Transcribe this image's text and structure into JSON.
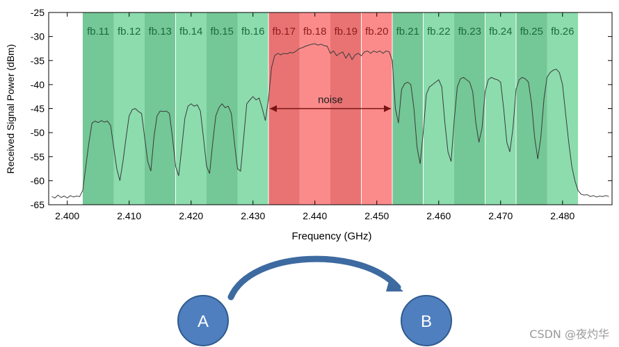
{
  "chart_data": {
    "type": "area",
    "xlabel": "Frequency (GHz)",
    "ylabel": "Received Signal Power (dBm)",
    "xlim": [
      2.397,
      2.488
    ],
    "ylim": [
      -65,
      -25
    ],
    "x_ticks": [
      2.4,
      2.41,
      2.42,
      2.43,
      2.44,
      2.45,
      2.46,
      2.47,
      2.48
    ],
    "x_tick_labels": [
      "2.400",
      "2.410",
      "2.420",
      "2.430",
      "2.440",
      "2.450",
      "2.460",
      "2.470",
      "2.480"
    ],
    "y_ticks": [
      -65,
      -60,
      -55,
      -50,
      -45,
      -40,
      -35,
      -30,
      -25
    ],
    "y_tick_labels": [
      "-65",
      "-60",
      "-55",
      "-50",
      "-45",
      "-40",
      "-35",
      "-30",
      "-25"
    ],
    "grid": false,
    "bands": [
      {
        "label": "fb.11",
        "x0": 2.4025,
        "x1": 2.4075,
        "type": "green"
      },
      {
        "label": "fb.12",
        "x0": 2.4075,
        "x1": 2.4125,
        "type": "green"
      },
      {
        "label": "fb.13",
        "x0": 2.4125,
        "x1": 2.4175,
        "type": "green"
      },
      {
        "label": "fb.14",
        "x0": 2.4175,
        "x1": 2.4225,
        "type": "green"
      },
      {
        "label": "fb.15",
        "x0": 2.4225,
        "x1": 2.4275,
        "type": "green"
      },
      {
        "label": "fb.16",
        "x0": 2.4275,
        "x1": 2.4325,
        "type": "green"
      },
      {
        "label": "fb.17",
        "x0": 2.4325,
        "x1": 2.4375,
        "type": "red"
      },
      {
        "label": "fb.18",
        "x0": 2.4375,
        "x1": 2.4425,
        "type": "red"
      },
      {
        "label": "fb.19",
        "x0": 2.4425,
        "x1": 2.4475,
        "type": "red"
      },
      {
        "label": "fb.20",
        "x0": 2.4475,
        "x1": 2.4525,
        "type": "red"
      },
      {
        "label": "fb.21",
        "x0": 2.4525,
        "x1": 2.4575,
        "type": "green"
      },
      {
        "label": "fb.22",
        "x0": 2.4575,
        "x1": 2.4625,
        "type": "green"
      },
      {
        "label": "fb.23",
        "x0": 2.4625,
        "x1": 2.4675,
        "type": "green"
      },
      {
        "label": "fb.24",
        "x0": 2.4675,
        "x1": 2.4725,
        "type": "green"
      },
      {
        "label": "fb.25",
        "x0": 2.4725,
        "x1": 2.4775,
        "type": "green"
      },
      {
        "label": "fb.26",
        "x0": 2.4775,
        "x1": 2.4825,
        "type": "green"
      }
    ],
    "annotation": {
      "text": "noise",
      "x0": 2.4325,
      "x1": 2.4525,
      "y": -45
    },
    "series": [
      {
        "values": [
          [
            2.3975,
            -63.3
          ],
          [
            2.398,
            -63.6
          ],
          [
            2.3985,
            -63.0
          ],
          [
            2.399,
            -63.5
          ],
          [
            2.3995,
            -63.2
          ],
          [
            2.4,
            -63.6
          ],
          [
            2.4005,
            -63.1
          ],
          [
            2.401,
            -63.4
          ],
          [
            2.4015,
            -63.2
          ],
          [
            2.402,
            -63.3
          ],
          [
            2.4025,
            -62.0
          ],
          [
            2.403,
            -57.0
          ],
          [
            2.4035,
            -52.0
          ],
          [
            2.404,
            -48.0
          ],
          [
            2.4045,
            -47.6
          ],
          [
            2.405,
            -47.9
          ],
          [
            2.4055,
            -47.5
          ],
          [
            2.406,
            -47.8
          ],
          [
            2.4065,
            -47.6
          ],
          [
            2.407,
            -48.5
          ],
          [
            2.4075,
            -53.0
          ],
          [
            2.408,
            -57.5
          ],
          [
            2.4085,
            -60.0
          ],
          [
            2.409,
            -56.0
          ],
          [
            2.4095,
            -51.0
          ],
          [
            2.41,
            -46.5
          ],
          [
            2.4105,
            -45.2
          ],
          [
            2.411,
            -45.0
          ],
          [
            2.4115,
            -45.6
          ],
          [
            2.412,
            -46.0
          ],
          [
            2.4125,
            -51.0
          ],
          [
            2.413,
            -56.0
          ],
          [
            2.4135,
            -58.0
          ],
          [
            2.414,
            -51.0
          ],
          [
            2.4145,
            -46.5
          ],
          [
            2.415,
            -45.5
          ],
          [
            2.4155,
            -45.6
          ],
          [
            2.416,
            -45.5
          ],
          [
            2.4165,
            -46.0
          ],
          [
            2.417,
            -51.0
          ],
          [
            2.4175,
            -57.0
          ],
          [
            2.418,
            -59.0
          ],
          [
            2.4185,
            -53.0
          ],
          [
            2.419,
            -47.0
          ],
          [
            2.4195,
            -44.5
          ],
          [
            2.42,
            -44.0
          ],
          [
            2.4205,
            -44.5
          ],
          [
            2.421,
            -44.2
          ],
          [
            2.4215,
            -45.5
          ],
          [
            2.422,
            -51.0
          ],
          [
            2.4225,
            -57.0
          ],
          [
            2.423,
            -58.5
          ],
          [
            2.4235,
            -52.0
          ],
          [
            2.424,
            -46.5
          ],
          [
            2.4245,
            -44.8
          ],
          [
            2.425,
            -44.0
          ],
          [
            2.4255,
            -44.8
          ],
          [
            2.426,
            -44.5
          ],
          [
            2.4265,
            -46.0
          ],
          [
            2.427,
            -52.0
          ],
          [
            2.4275,
            -57.5
          ],
          [
            2.428,
            -58.0
          ],
          [
            2.4285,
            -51.0
          ],
          [
            2.429,
            -44.0
          ],
          [
            2.4295,
            -43.2
          ],
          [
            2.43,
            -42.5
          ],
          [
            2.4305,
            -43.2
          ],
          [
            2.431,
            -42.8
          ],
          [
            2.4315,
            -45.0
          ],
          [
            2.432,
            -47.5
          ],
          [
            2.4325,
            -43.0
          ],
          [
            2.433,
            -36.5
          ],
          [
            2.4335,
            -34.0
          ],
          [
            2.434,
            -33.5
          ],
          [
            2.4345,
            -33.8
          ],
          [
            2.435,
            -33.5
          ],
          [
            2.4355,
            -33.6
          ],
          [
            2.436,
            -33.3
          ],
          [
            2.4365,
            -33.4
          ],
          [
            2.437,
            -33.0
          ],
          [
            2.4375,
            -32.5
          ],
          [
            2.438,
            -32.3
          ],
          [
            2.4385,
            -32.0
          ],
          [
            2.439,
            -31.8
          ],
          [
            2.4395,
            -31.6
          ],
          [
            2.44,
            -31.5
          ],
          [
            2.4405,
            -31.8
          ],
          [
            2.441,
            -31.6
          ],
          [
            2.4415,
            -31.9
          ],
          [
            2.442,
            -32.0
          ],
          [
            2.4425,
            -33.5
          ],
          [
            2.443,
            -33.0
          ],
          [
            2.4435,
            -34.0
          ],
          [
            2.444,
            -33.5
          ],
          [
            2.4445,
            -33.2
          ],
          [
            2.445,
            -34.5
          ],
          [
            2.4455,
            -33.5
          ],
          [
            2.446,
            -34.8
          ],
          [
            2.4465,
            -33.8
          ],
          [
            2.447,
            -33.5
          ],
          [
            2.4475,
            -34.0
          ],
          [
            2.448,
            -33.2
          ],
          [
            2.4485,
            -33.0
          ],
          [
            2.449,
            -33.5
          ],
          [
            2.4495,
            -33.0
          ],
          [
            2.45,
            -33.3
          ],
          [
            2.4505,
            -33.0
          ],
          [
            2.451,
            -33.5
          ],
          [
            2.4515,
            -33.0
          ],
          [
            2.452,
            -33.2
          ],
          [
            2.4525,
            -35.0
          ],
          [
            2.453,
            -45.0
          ],
          [
            2.4535,
            -48.0
          ],
          [
            2.454,
            -41.0
          ],
          [
            2.4545,
            -39.8
          ],
          [
            2.455,
            -39.5
          ],
          [
            2.4555,
            -40.0
          ],
          [
            2.456,
            -45.0
          ],
          [
            2.4565,
            -53.0
          ],
          [
            2.457,
            -56.5
          ],
          [
            2.4575,
            -50.0
          ],
          [
            2.458,
            -42.0
          ],
          [
            2.4585,
            -40.5
          ],
          [
            2.459,
            -40.0
          ],
          [
            2.4595,
            -39.5
          ],
          [
            2.46,
            -39.0
          ],
          [
            2.4605,
            -40.5
          ],
          [
            2.461,
            -48.0
          ],
          [
            2.4615,
            -54.0
          ],
          [
            2.462,
            -56.0
          ],
          [
            2.4625,
            -47.5
          ],
          [
            2.463,
            -40.5
          ],
          [
            2.4635,
            -38.8
          ],
          [
            2.464,
            -38.5
          ],
          [
            2.4645,
            -39.0
          ],
          [
            2.465,
            -39.5
          ],
          [
            2.4655,
            -41.5
          ],
          [
            2.466,
            -48.0
          ],
          [
            2.4665,
            -52.0
          ],
          [
            2.467,
            -49.0
          ],
          [
            2.4675,
            -41.5
          ],
          [
            2.468,
            -39.0
          ],
          [
            2.4685,
            -38.5
          ],
          [
            2.469,
            -38.8
          ],
          [
            2.4695,
            -39.0
          ],
          [
            2.47,
            -39.5
          ],
          [
            2.4705,
            -45.0
          ],
          [
            2.471,
            -52.0
          ],
          [
            2.4715,
            -54.0
          ],
          [
            2.472,
            -49.0
          ],
          [
            2.4725,
            -41.0
          ],
          [
            2.473,
            -39.0
          ],
          [
            2.4735,
            -38.5
          ],
          [
            2.474,
            -38.8
          ],
          [
            2.4745,
            -39.5
          ],
          [
            2.475,
            -44.0
          ],
          [
            2.4755,
            -51.0
          ],
          [
            2.476,
            -55.5
          ],
          [
            2.4765,
            -51.0
          ],
          [
            2.477,
            -43.0
          ],
          [
            2.4775,
            -38.5
          ],
          [
            2.478,
            -37.5
          ],
          [
            2.4785,
            -37.0
          ],
          [
            2.479,
            -36.8
          ],
          [
            2.4795,
            -37.5
          ],
          [
            2.48,
            -40.0
          ],
          [
            2.4805,
            -46.0
          ],
          [
            2.481,
            -52.0
          ],
          [
            2.4815,
            -57.0
          ],
          [
            2.482,
            -60.0
          ],
          [
            2.4825,
            -62.0
          ],
          [
            2.483,
            -62.8
          ],
          [
            2.4835,
            -63.0
          ],
          [
            2.484,
            -62.9
          ],
          [
            2.4845,
            -63.3
          ],
          [
            2.485,
            -63.1
          ],
          [
            2.4855,
            -63.4
          ],
          [
            2.486,
            -63.2
          ],
          [
            2.4865,
            -63.3
          ],
          [
            2.487,
            -63.1
          ],
          [
            2.4875,
            -63.3
          ]
        ]
      }
    ]
  },
  "diagram": {
    "node_a_label": "A",
    "node_b_label": "B"
  },
  "watermark": "CSDN @夜灼华",
  "colors": {
    "green_dark": "#74c796",
    "green_light": "#8cdcae",
    "red_dark": "#e97373",
    "red_light": "#fb8b8b",
    "green_label": "#1c6b3c",
    "red_label": "#8c1b1b",
    "arrow_blue": "#3d6aa0",
    "node_blue": "#4f7fbf",
    "node_stroke": "#2f5a8d"
  }
}
